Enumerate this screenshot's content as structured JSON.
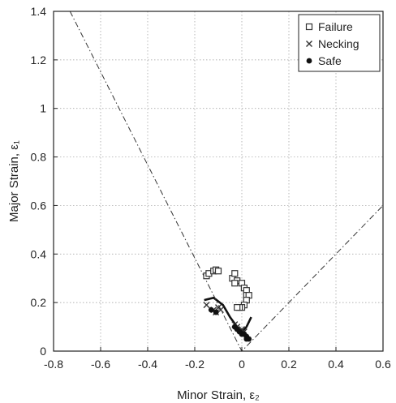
{
  "chart_data": {
    "type": "scatter",
    "xlabel": "Minor Strain, ε₂",
    "ylabel": "Major Strain, ε₁",
    "xlim": [
      -0.8,
      0.6
    ],
    "ylim": [
      0,
      1.4
    ],
    "x_ticks": [
      -0.8,
      -0.6,
      -0.4,
      -0.2,
      0,
      0.2,
      0.4,
      0.6
    ],
    "x_tick_labels": [
      "-0.8",
      "-0.6",
      "-0.4",
      "-0.2",
      "0",
      "0.2",
      "0.4",
      "0.6"
    ],
    "y_ticks": [
      0,
      0.2,
      0.4,
      0.6,
      0.8,
      1,
      1.2,
      1.4
    ],
    "y_tick_labels": [
      "0",
      "0.2",
      "0.4",
      "0.6",
      "0.8",
      "1",
      "1.2",
      "1.4"
    ],
    "grid": true,
    "legend_position": "top-right",
    "series": [
      {
        "name": "Failure",
        "marker": "open-square",
        "color": "#333333",
        "points": [
          [
            -0.15,
            0.31
          ],
          [
            -0.14,
            0.32
          ],
          [
            -0.12,
            0.33
          ],
          [
            -0.11,
            0.335
          ],
          [
            -0.1,
            0.33
          ],
          [
            -0.04,
            0.3
          ],
          [
            -0.03,
            0.32
          ],
          [
            -0.02,
            0.29
          ],
          [
            -0.03,
            0.28
          ],
          [
            0.0,
            0.28
          ],
          [
            0.01,
            0.26
          ],
          [
            0.02,
            0.25
          ],
          [
            0.02,
            0.23
          ],
          [
            0.03,
            0.23
          ],
          [
            0.02,
            0.21
          ],
          [
            0.01,
            0.19
          ],
          [
            0.0,
            0.18
          ],
          [
            -0.01,
            0.18
          ],
          [
            -0.02,
            0.18
          ]
        ]
      },
      {
        "name": "Necking",
        "marker": "cross",
        "color": "#333333",
        "points": [
          [
            -0.15,
            0.19
          ],
          [
            -0.12,
            0.17
          ],
          [
            -0.11,
            0.16
          ],
          [
            -0.1,
            0.18
          ],
          [
            -0.09,
            0.17
          ],
          [
            -0.03,
            0.11
          ],
          [
            -0.02,
            0.1
          ],
          [
            0.0,
            0.09
          ],
          [
            0.01,
            0.08
          ]
        ]
      },
      {
        "name": "Safe",
        "marker": "filled-circle",
        "color": "#111111",
        "points": [
          [
            -0.13,
            0.17
          ],
          [
            -0.11,
            0.16
          ],
          [
            -0.03,
            0.1
          ],
          [
            -0.02,
            0.09
          ],
          [
            -0.01,
            0.08
          ],
          [
            0.0,
            0.07
          ],
          [
            0.01,
            0.07
          ],
          [
            0.02,
            0.06
          ],
          [
            0.03,
            0.05
          ],
          [
            0.02,
            0.05
          ]
        ]
      }
    ],
    "curves": [
      {
        "style": "solid",
        "color": "#111111",
        "points": [
          [
            -0.16,
            0.21
          ],
          [
            -0.12,
            0.22
          ],
          [
            -0.08,
            0.19
          ],
          [
            -0.05,
            0.14
          ],
          [
            -0.02,
            0.1
          ],
          [
            0.0,
            0.08
          ],
          [
            0.02,
            0.1
          ],
          [
            0.04,
            0.14
          ]
        ]
      },
      {
        "style": "dash-dot",
        "color": "#333333",
        "points": [
          [
            -0.73,
            1.4
          ],
          [
            0.0,
            0.0
          ],
          [
            0.6,
            0.6
          ]
        ]
      }
    ]
  }
}
